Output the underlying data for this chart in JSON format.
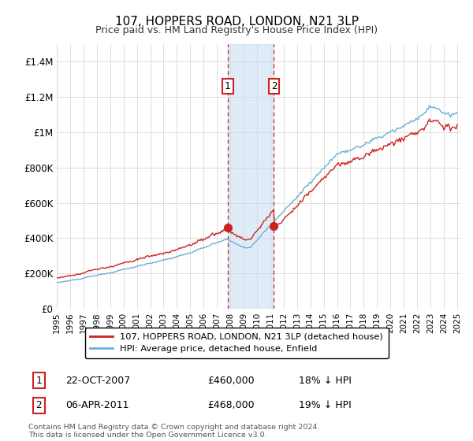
{
  "title": "107, HOPPERS ROAD, LONDON, N21 3LP",
  "subtitle": "Price paid vs. HM Land Registry's House Price Index (HPI)",
  "ylim": [
    0,
    1500000
  ],
  "yticks": [
    0,
    200000,
    400000,
    600000,
    800000,
    1000000,
    1200000,
    1400000
  ],
  "ytick_labels": [
    "£0",
    "£200K",
    "£400K",
    "£600K",
    "£800K",
    "£1M",
    "£1.2M",
    "£1.4M"
  ],
  "hpi_color": "#6baed6",
  "price_color": "#cc2222",
  "shade_color": "#c6dbef",
  "transaction1_date": 2007.8,
  "transaction1_price": 460000,
  "transaction2_date": 2011.27,
  "transaction2_price": 468000,
  "legend_entry1": "107, HOPPERS ROAD, LONDON, N21 3LP (detached house)",
  "legend_entry2": "HPI: Average price, detached house, Enfield",
  "date_str1": "22-OCT-2007",
  "price_str1": "£460,000",
  "pct_str1": "18% ↓ HPI",
  "date_str2": "06-APR-2011",
  "price_str2": "£468,000",
  "pct_str2": "19% ↓ HPI",
  "footer": "Contains HM Land Registry data © Crown copyright and database right 2024.\nThis data is licensed under the Open Government Licence v3.0.",
  "background_color": "#ffffff"
}
